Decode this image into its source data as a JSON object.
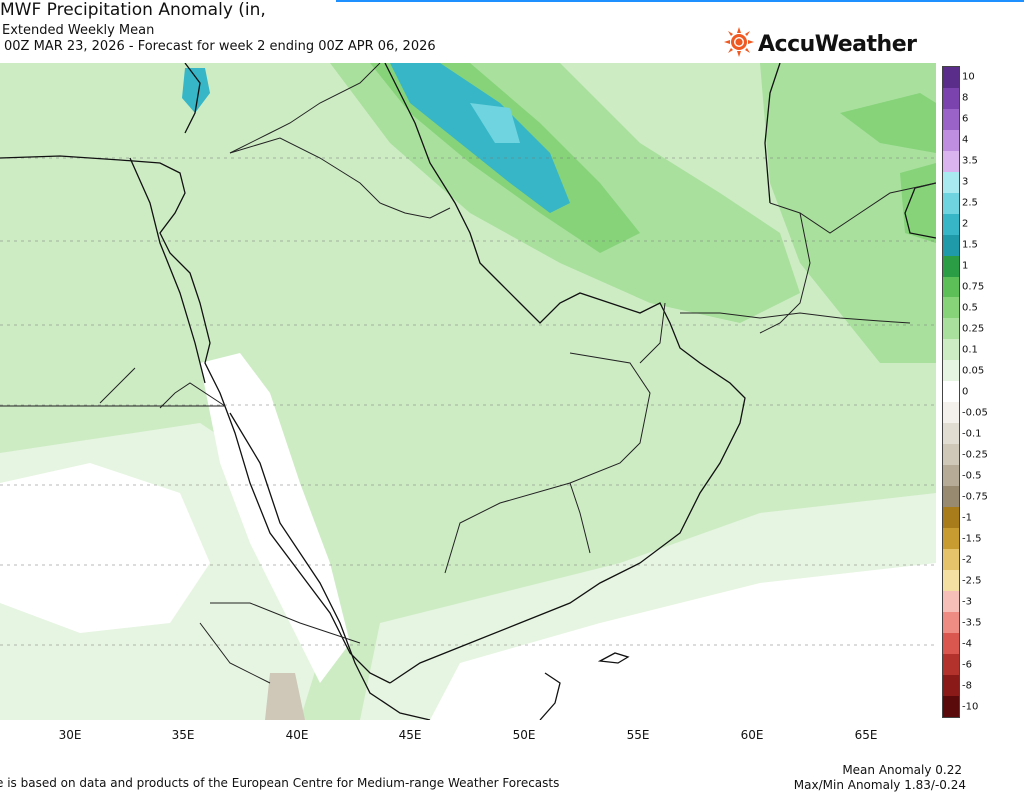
{
  "header": {
    "title": "MWF Precipitation Anomaly (in,",
    "subtitle1": "Extended Weekly Mean",
    "subtitle2": "00Z MAR 23, 2026 - Forecast for week 2 ending 00Z APR 06, 2026"
  },
  "logo": {
    "text": "AccuWeather",
    "icon": "sun-icon",
    "color": "#f05a22"
  },
  "map": {
    "longitude_labels": [
      "30E",
      "35E",
      "40E",
      "45E",
      "50E",
      "55E",
      "60E",
      "65E"
    ]
  },
  "colorbar": {
    "levels": [
      {
        "label": "10",
        "color": "#5b2d8a"
      },
      {
        "label": "8",
        "color": "#7a43ad"
      },
      {
        "label": "6",
        "color": "#9a63c8"
      },
      {
        "label": "4",
        "color": "#c08ee0"
      },
      {
        "label": "3.5",
        "color": "#d9b4ee"
      },
      {
        "label": "3",
        "color": "#a9e9f0"
      },
      {
        "label": "2.5",
        "color": "#6fd4e0"
      },
      {
        "label": "2",
        "color": "#36b6c6"
      },
      {
        "label": "1.5",
        "color": "#1e9aa8"
      },
      {
        "label": "1",
        "color": "#2a9d45"
      },
      {
        "label": "0.75",
        "color": "#5cbf58"
      },
      {
        "label": "0.5",
        "color": "#86d37a"
      },
      {
        "label": "0.25",
        "color": "#a9e09d"
      },
      {
        "label": "0.1",
        "color": "#cdecc4"
      },
      {
        "label": "0.05",
        "color": "#e6f5e1"
      },
      {
        "label": "0",
        "color": "#ffffff"
      },
      {
        "label": "-0.05",
        "color": "#f4f1ec"
      },
      {
        "label": "-0.1",
        "color": "#e2ddd3"
      },
      {
        "label": "-0.25",
        "color": "#cfc7b8"
      },
      {
        "label": "-0.5",
        "color": "#b6ab96"
      },
      {
        "label": "-0.75",
        "color": "#978a70"
      },
      {
        "label": "-1",
        "color": "#a87c1a"
      },
      {
        "label": "-1.5",
        "color": "#c99c32"
      },
      {
        "label": "-2",
        "color": "#e4c36a"
      },
      {
        "label": "-2.5",
        "color": "#f3dfa2"
      },
      {
        "label": "-3",
        "color": "#f6c0b8"
      },
      {
        "label": "-3.5",
        "color": "#ee8c84"
      },
      {
        "label": "-4",
        "color": "#d9574f"
      },
      {
        "label": "-6",
        "color": "#b3322c"
      },
      {
        "label": "-8",
        "color": "#8a1a18"
      },
      {
        "label": "-10",
        "color": "#5a0a0a"
      }
    ]
  },
  "stats": {
    "mean_anomaly": "Mean Anomaly 0.22",
    "minmax_anomaly": "Max/Min Anomaly 1.83/-0.24"
  },
  "footer": {
    "text": "e is based on data and products of the European Centre for Medium-range Weather Forecasts"
  }
}
